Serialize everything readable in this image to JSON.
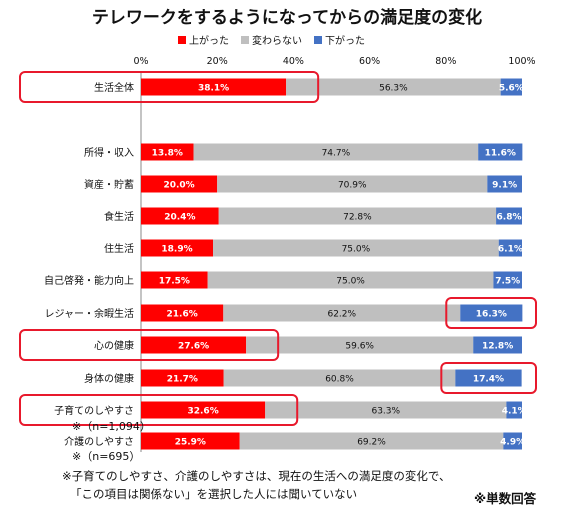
{
  "chart_data": {
    "type": "bar",
    "stacked": true,
    "orientation": "horizontal",
    "title": "テレワークをするようになってからの満足度の変化",
    "categories": [
      "生活全体",
      "所得・収入",
      "資産・貯蓄",
      "食生活",
      "住生活",
      "自己啓発・能力向上",
      "レジャー・余暇生活",
      "心の健康",
      "身体の健康",
      "子育てのしやすさ",
      "介護のしやすさ"
    ],
    "series": [
      {
        "name": "上がった",
        "color": "#ff0000",
        "values": [
          38.1,
          13.8,
          20.0,
          20.4,
          18.9,
          17.5,
          21.6,
          27.6,
          21.7,
          32.6,
          25.9
        ],
        "labels": [
          "38.1%",
          "13.8%",
          "20.0%",
          "20.4%",
          "18.9%",
          "17.5%",
          "21.6%",
          "27.6%",
          "21.7%",
          "32.6%",
          "25.9%"
        ]
      },
      {
        "name": "変わらない",
        "color": "#bfbfbf",
        "values": [
          56.3,
          74.7,
          70.9,
          72.8,
          75.0,
          75.0,
          62.2,
          59.6,
          60.8,
          63.3,
          69.2
        ],
        "labels": [
          "56.3%",
          "74.7%",
          "70.9%",
          "72.8%",
          "75.0%",
          "75.0%",
          "62.2%",
          "59.6%",
          "60.8%",
          "63.3%",
          "69.2%"
        ]
      },
      {
        "name": "下がった",
        "color": "#4472c4",
        "values": [
          5.6,
          11.6,
          9.1,
          6.8,
          6.1,
          7.5,
          16.3,
          12.8,
          17.4,
          4.1,
          4.9
        ],
        "labels": [
          "5.6%",
          "11.6%",
          "9.1%",
          "6.8%",
          "6.1%",
          "7.5%",
          "16.3%",
          "12.8%",
          "17.4%",
          "4.1%",
          "4.9%"
        ]
      }
    ],
    "xlim": [
      0,
      100
    ],
    "xticks": [
      "0%",
      "20%",
      "40%",
      "60%",
      "80%",
      "100%"
    ],
    "legend_position": "top",
    "highlight_color": "#e8192c",
    "highlights": [
      {
        "category": "生活全体",
        "segment": "label+上がった"
      },
      {
        "category": "レジャー・余暇生活",
        "segment": "下がった"
      },
      {
        "category": "心の健康",
        "segment": "label+上がった"
      },
      {
        "category": "身体の健康",
        "segment": "下がった"
      },
      {
        "category": "子育てのしやすさ",
        "segment": "label+上がった"
      }
    ]
  },
  "sample_notes": {
    "childcare": "※（n=1,094）",
    "nursing": "※（n=695）"
  },
  "footnote": {
    "line1": "※子育てのしやすさ、介護のしやすさは、現在の生活への満足度の変化で、",
    "line2": "「この項目は関係ない」を選択した人には聞いていない"
  },
  "tag": "※単数回答"
}
